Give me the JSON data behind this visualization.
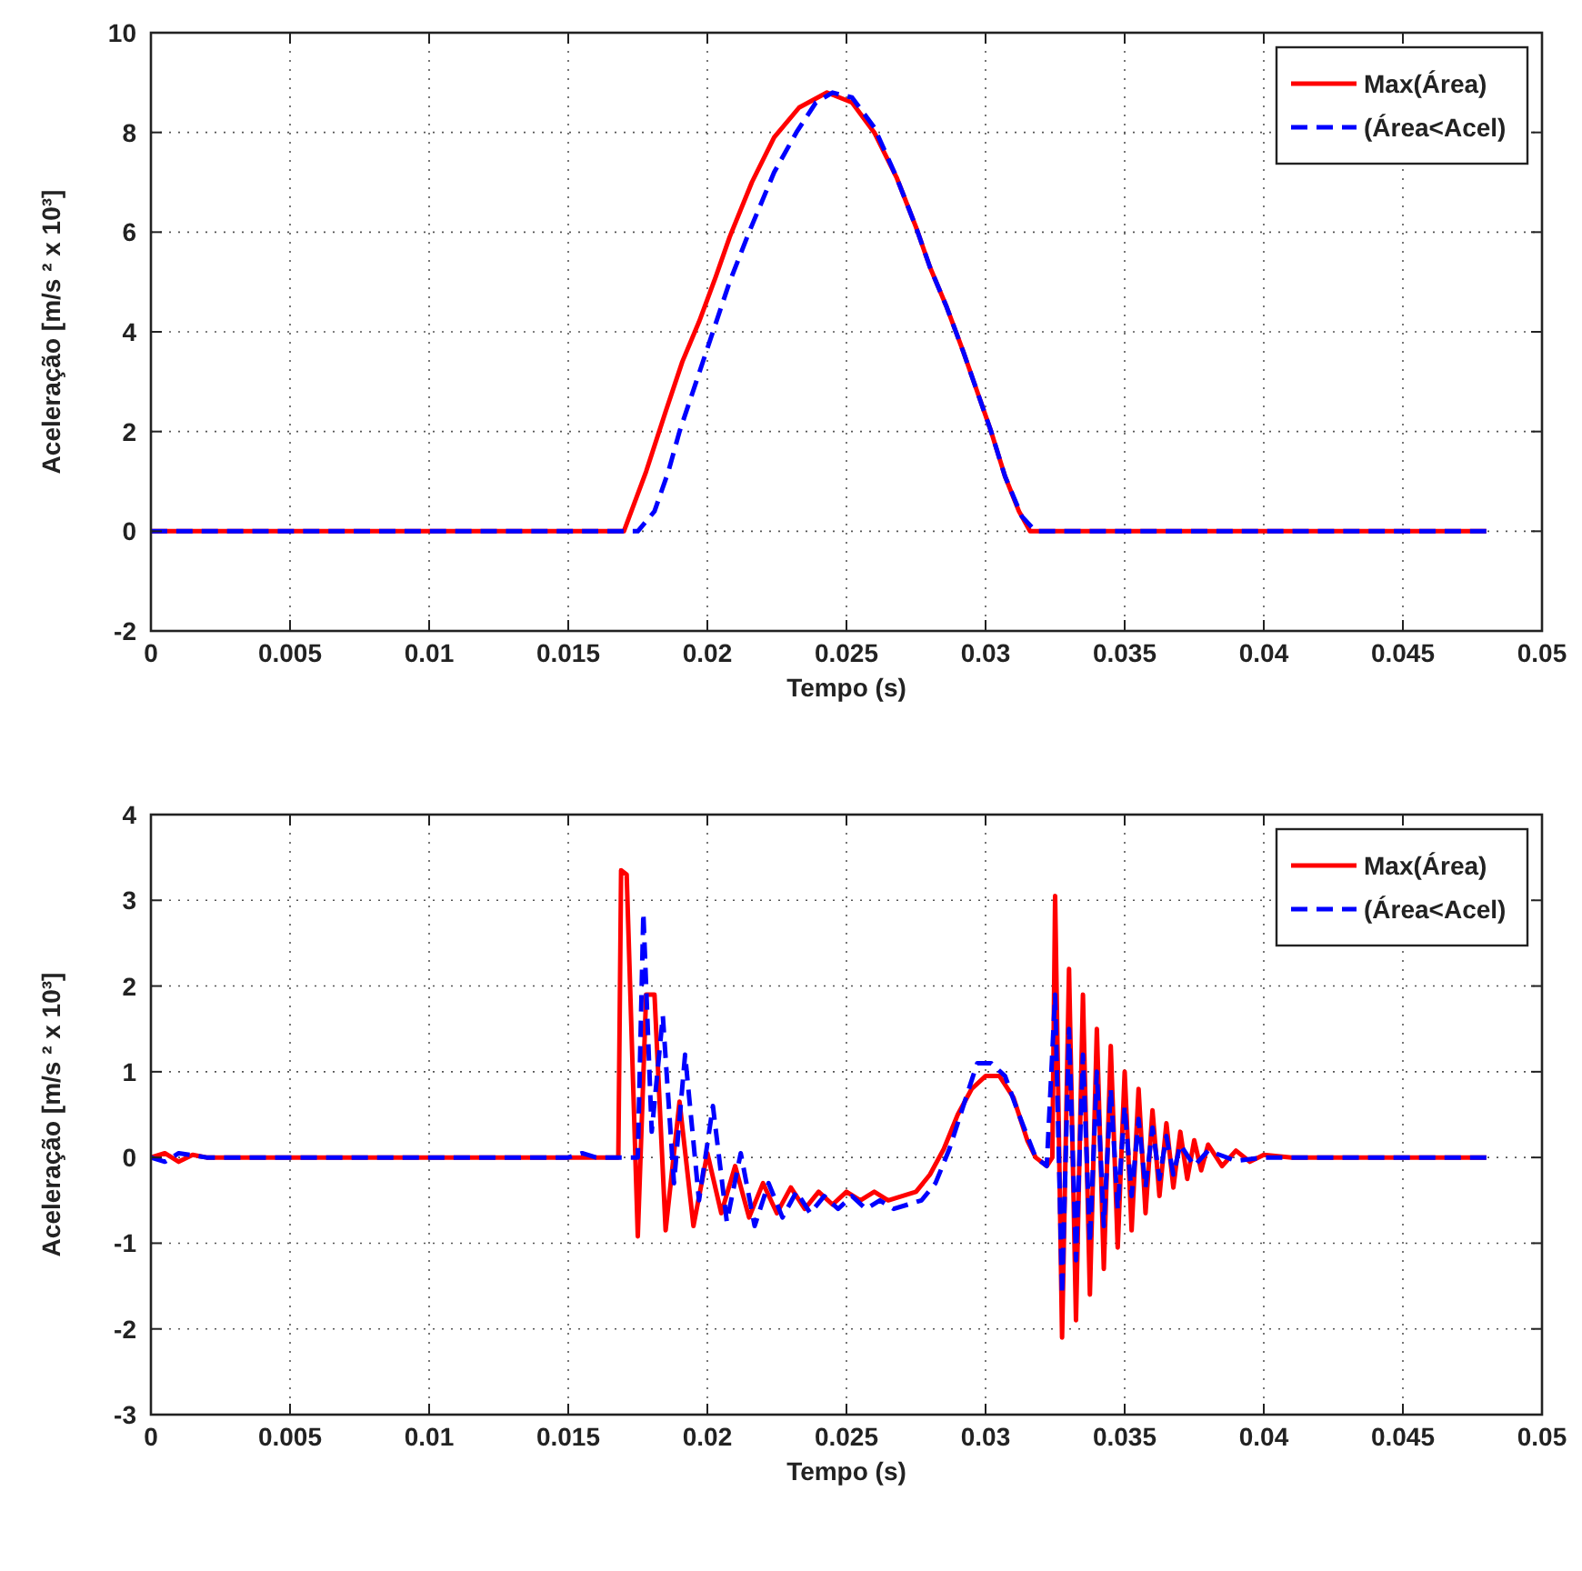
{
  "chart_data": [
    {
      "type": "line",
      "xlabel": "Tempo (s)",
      "ylabel": "Aceleração [m/s ² x 10³]",
      "xlim": [
        0,
        0.05
      ],
      "ylim": [
        -2,
        10
      ],
      "xticks": [
        0,
        0.005,
        0.01,
        0.015,
        0.02,
        0.025,
        0.03,
        0.035,
        0.04,
        0.045,
        0.05
      ],
      "yticks": [
        -2,
        0,
        2,
        4,
        6,
        8,
        10
      ],
      "grid": true,
      "legend": "top right",
      "series": [
        {
          "name": "Max(Área)",
          "color": "#ff0000",
          "line_style": "solid",
          "x": [
            0,
            0.017,
            0.0178,
            0.0185,
            0.0191,
            0.0197,
            0.0203,
            0.0208,
            0.0216,
            0.0224,
            0.0233,
            0.0243,
            0.0252,
            0.026,
            0.0268,
            0.0275,
            0.028,
            0.0286,
            0.0292,
            0.0297,
            0.0302,
            0.0307,
            0.0312,
            0.0316,
            0.048
          ],
          "values": [
            0,
            0,
            1.2,
            2.4,
            3.4,
            4.2,
            5.1,
            5.9,
            7.0,
            7.9,
            8.5,
            8.8,
            8.6,
            8.0,
            7.1,
            6.1,
            5.3,
            4.5,
            3.6,
            2.8,
            2.0,
            1.1,
            0.4,
            0,
            0
          ]
        },
        {
          "name": "(Área<Acel)",
          "color": "#0000ff",
          "line_style": "dashed",
          "x": [
            0,
            0.0175,
            0.0181,
            0.0186,
            0.019,
            0.0196,
            0.0202,
            0.0208,
            0.0215,
            0.0224,
            0.0232,
            0.0239,
            0.0245,
            0.0252,
            0.026,
            0.0268,
            0.0275,
            0.028,
            0.0286,
            0.0292,
            0.0297,
            0.0302,
            0.0307,
            0.0313,
            0.0318,
            0.048
          ],
          "values": [
            0,
            0,
            0.4,
            1.2,
            2.0,
            3.0,
            4.0,
            5.0,
            6.0,
            7.2,
            8.0,
            8.6,
            8.8,
            8.7,
            8.1,
            7.1,
            6.1,
            5.3,
            4.5,
            3.6,
            2.8,
            2.0,
            1.1,
            0.3,
            0,
            0
          ]
        }
      ]
    },
    {
      "type": "line",
      "xlabel": "Tempo (s)",
      "ylabel": "Aceleração [m/s ² x 10³]",
      "xlim": [
        0,
        0.05
      ],
      "ylim": [
        -3,
        4
      ],
      "xticks": [
        0,
        0.005,
        0.01,
        0.015,
        0.02,
        0.025,
        0.03,
        0.035,
        0.04,
        0.045,
        0.05
      ],
      "yticks": [
        -3,
        -2,
        -1,
        0,
        1,
        2,
        3,
        4
      ],
      "grid": true,
      "legend": "top right",
      "series": [
        {
          "name": "Max(Área)",
          "color": "#ff0000",
          "line_style": "solid",
          "x": [
            0,
            0.0005,
            0.001,
            0.0015,
            0.002,
            0.0168,
            0.0169,
            0.0171,
            0.0175,
            0.0178,
            0.0181,
            0.0185,
            0.019,
            0.0195,
            0.02,
            0.0205,
            0.021,
            0.0215,
            0.022,
            0.0225,
            0.023,
            0.0235,
            0.024,
            0.0245,
            0.025,
            0.0255,
            0.026,
            0.0265,
            0.027,
            0.0275,
            0.028,
            0.0285,
            0.029,
            0.0295,
            0.03,
            0.0305,
            0.031,
            0.0315,
            0.0318,
            0.0322,
            0.0324,
            0.0325,
            0.03275,
            0.033,
            0.03325,
            0.0335,
            0.03375,
            0.034,
            0.03425,
            0.0345,
            0.03475,
            0.035,
            0.03525,
            0.0355,
            0.03575,
            0.036,
            0.03625,
            0.0365,
            0.03675,
            0.037,
            0.03725,
            0.0375,
            0.03775,
            0.038,
            0.0385,
            0.039,
            0.0395,
            0.04,
            0.041,
            0.048
          ],
          "values": [
            0,
            0.05,
            -0.05,
            0.03,
            0,
            0,
            3.35,
            3.3,
            -0.92,
            1.9,
            1.9,
            -0.85,
            0.65,
            -0.8,
            0.05,
            -0.65,
            -0.1,
            -0.7,
            -0.3,
            -0.65,
            -0.35,
            -0.6,
            -0.4,
            -0.55,
            -0.4,
            -0.5,
            -0.4,
            -0.5,
            -0.45,
            -0.4,
            -0.2,
            0.1,
            0.5,
            0.8,
            0.95,
            0.95,
            0.7,
            0.2,
            0,
            -0.1,
            0,
            3.05,
            -2.1,
            2.2,
            -1.9,
            1.9,
            -1.6,
            1.5,
            -1.3,
            1.3,
            -1.05,
            1.0,
            -0.85,
            0.8,
            -0.65,
            0.55,
            -0.45,
            0.4,
            -0.35,
            0.3,
            -0.25,
            0.2,
            -0.15,
            0.15,
            -0.1,
            0.08,
            -0.05,
            0.03,
            0,
            0
          ]
        },
        {
          "name": "(Área<Acel)",
          "color": "#0000ff",
          "line_style": "dashed",
          "x": [
            0,
            0.0005,
            0.001,
            0.002,
            0.015,
            0.0155,
            0.016,
            0.0175,
            0.0177,
            0.018,
            0.0184,
            0.0188,
            0.0192,
            0.0197,
            0.0202,
            0.0207,
            0.0212,
            0.0217,
            0.0222,
            0.0227,
            0.0232,
            0.0237,
            0.0242,
            0.0247,
            0.0252,
            0.0257,
            0.0262,
            0.0267,
            0.0272,
            0.0277,
            0.0282,
            0.0287,
            0.0292,
            0.0297,
            0.0302,
            0.0307,
            0.0312,
            0.0318,
            0.0322,
            0.0325,
            0.03275,
            0.033,
            0.03325,
            0.0335,
            0.03375,
            0.034,
            0.03425,
            0.0345,
            0.03475,
            0.035,
            0.03525,
            0.0355,
            0.03575,
            0.036,
            0.03625,
            0.0365,
            0.03675,
            0.037,
            0.0375,
            0.038,
            0.039,
            0.04,
            0.048
          ],
          "values": [
            0,
            -0.05,
            0.05,
            0,
            0,
            0.05,
            0,
            0,
            2.85,
            0.3,
            1.65,
            -0.3,
            1.2,
            -0.5,
            0.6,
            -0.75,
            0.05,
            -0.8,
            -0.3,
            -0.7,
            -0.4,
            -0.65,
            -0.45,
            -0.6,
            -0.45,
            -0.6,
            -0.5,
            -0.6,
            -0.55,
            -0.5,
            -0.3,
            0.1,
            0.6,
            1.1,
            1.1,
            0.95,
            0.5,
            0,
            -0.1,
            1.9,
            -1.6,
            1.5,
            -1.2,
            1.2,
            -1.0,
            1.0,
            -0.8,
            0.8,
            -0.6,
            0.6,
            -0.45,
            0.45,
            -0.35,
            0.35,
            -0.25,
            0.25,
            -0.2,
            0.15,
            -0.1,
            0.08,
            -0.04,
            0,
            0
          ]
        }
      ]
    }
  ]
}
